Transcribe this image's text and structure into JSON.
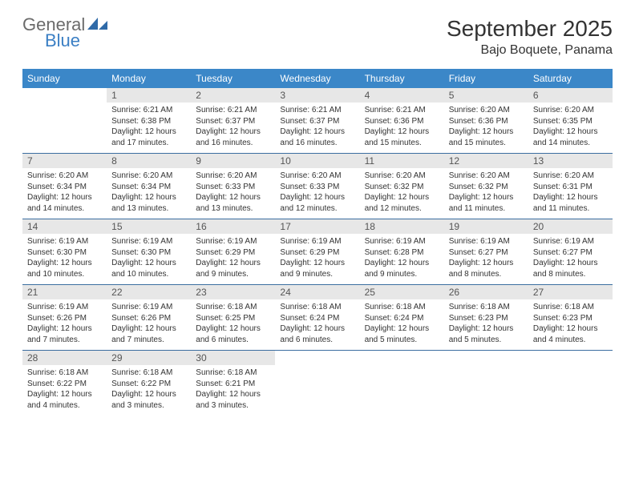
{
  "logo": {
    "word1": "General",
    "word2": "Blue"
  },
  "title": "September 2025",
  "location": "Bajo Boquete, Panama",
  "day_headers": [
    "Sunday",
    "Monday",
    "Tuesday",
    "Wednesday",
    "Thursday",
    "Friday",
    "Saturday"
  ],
  "colors": {
    "header_bg": "#3b87c8",
    "header_text": "#ffffff",
    "daynum_bg": "#e7e7e7",
    "row_border": "#3b6ea0",
    "logo_blue": "#3b7fc4"
  },
  "weeks": [
    [
      {
        "n": "",
        "sunrise": "",
        "sunset": "",
        "daylight1": "",
        "daylight2": ""
      },
      {
        "n": "1",
        "sunrise": "Sunrise: 6:21 AM",
        "sunset": "Sunset: 6:38 PM",
        "daylight1": "Daylight: 12 hours",
        "daylight2": "and 17 minutes."
      },
      {
        "n": "2",
        "sunrise": "Sunrise: 6:21 AM",
        "sunset": "Sunset: 6:37 PM",
        "daylight1": "Daylight: 12 hours",
        "daylight2": "and 16 minutes."
      },
      {
        "n": "3",
        "sunrise": "Sunrise: 6:21 AM",
        "sunset": "Sunset: 6:37 PM",
        "daylight1": "Daylight: 12 hours",
        "daylight2": "and 16 minutes."
      },
      {
        "n": "4",
        "sunrise": "Sunrise: 6:21 AM",
        "sunset": "Sunset: 6:36 PM",
        "daylight1": "Daylight: 12 hours",
        "daylight2": "and 15 minutes."
      },
      {
        "n": "5",
        "sunrise": "Sunrise: 6:20 AM",
        "sunset": "Sunset: 6:36 PM",
        "daylight1": "Daylight: 12 hours",
        "daylight2": "and 15 minutes."
      },
      {
        "n": "6",
        "sunrise": "Sunrise: 6:20 AM",
        "sunset": "Sunset: 6:35 PM",
        "daylight1": "Daylight: 12 hours",
        "daylight2": "and 14 minutes."
      }
    ],
    [
      {
        "n": "7",
        "sunrise": "Sunrise: 6:20 AM",
        "sunset": "Sunset: 6:34 PM",
        "daylight1": "Daylight: 12 hours",
        "daylight2": "and 14 minutes."
      },
      {
        "n": "8",
        "sunrise": "Sunrise: 6:20 AM",
        "sunset": "Sunset: 6:34 PM",
        "daylight1": "Daylight: 12 hours",
        "daylight2": "and 13 minutes."
      },
      {
        "n": "9",
        "sunrise": "Sunrise: 6:20 AM",
        "sunset": "Sunset: 6:33 PM",
        "daylight1": "Daylight: 12 hours",
        "daylight2": "and 13 minutes."
      },
      {
        "n": "10",
        "sunrise": "Sunrise: 6:20 AM",
        "sunset": "Sunset: 6:33 PM",
        "daylight1": "Daylight: 12 hours",
        "daylight2": "and 12 minutes."
      },
      {
        "n": "11",
        "sunrise": "Sunrise: 6:20 AM",
        "sunset": "Sunset: 6:32 PM",
        "daylight1": "Daylight: 12 hours",
        "daylight2": "and 12 minutes."
      },
      {
        "n": "12",
        "sunrise": "Sunrise: 6:20 AM",
        "sunset": "Sunset: 6:32 PM",
        "daylight1": "Daylight: 12 hours",
        "daylight2": "and 11 minutes."
      },
      {
        "n": "13",
        "sunrise": "Sunrise: 6:20 AM",
        "sunset": "Sunset: 6:31 PM",
        "daylight1": "Daylight: 12 hours",
        "daylight2": "and 11 minutes."
      }
    ],
    [
      {
        "n": "14",
        "sunrise": "Sunrise: 6:19 AM",
        "sunset": "Sunset: 6:30 PM",
        "daylight1": "Daylight: 12 hours",
        "daylight2": "and 10 minutes."
      },
      {
        "n": "15",
        "sunrise": "Sunrise: 6:19 AM",
        "sunset": "Sunset: 6:30 PM",
        "daylight1": "Daylight: 12 hours",
        "daylight2": "and 10 minutes."
      },
      {
        "n": "16",
        "sunrise": "Sunrise: 6:19 AM",
        "sunset": "Sunset: 6:29 PM",
        "daylight1": "Daylight: 12 hours",
        "daylight2": "and 9 minutes."
      },
      {
        "n": "17",
        "sunrise": "Sunrise: 6:19 AM",
        "sunset": "Sunset: 6:29 PM",
        "daylight1": "Daylight: 12 hours",
        "daylight2": "and 9 minutes."
      },
      {
        "n": "18",
        "sunrise": "Sunrise: 6:19 AM",
        "sunset": "Sunset: 6:28 PM",
        "daylight1": "Daylight: 12 hours",
        "daylight2": "and 9 minutes."
      },
      {
        "n": "19",
        "sunrise": "Sunrise: 6:19 AM",
        "sunset": "Sunset: 6:27 PM",
        "daylight1": "Daylight: 12 hours",
        "daylight2": "and 8 minutes."
      },
      {
        "n": "20",
        "sunrise": "Sunrise: 6:19 AM",
        "sunset": "Sunset: 6:27 PM",
        "daylight1": "Daylight: 12 hours",
        "daylight2": "and 8 minutes."
      }
    ],
    [
      {
        "n": "21",
        "sunrise": "Sunrise: 6:19 AM",
        "sunset": "Sunset: 6:26 PM",
        "daylight1": "Daylight: 12 hours",
        "daylight2": "and 7 minutes."
      },
      {
        "n": "22",
        "sunrise": "Sunrise: 6:19 AM",
        "sunset": "Sunset: 6:26 PM",
        "daylight1": "Daylight: 12 hours",
        "daylight2": "and 7 minutes."
      },
      {
        "n": "23",
        "sunrise": "Sunrise: 6:18 AM",
        "sunset": "Sunset: 6:25 PM",
        "daylight1": "Daylight: 12 hours",
        "daylight2": "and 6 minutes."
      },
      {
        "n": "24",
        "sunrise": "Sunrise: 6:18 AM",
        "sunset": "Sunset: 6:24 PM",
        "daylight1": "Daylight: 12 hours",
        "daylight2": "and 6 minutes."
      },
      {
        "n": "25",
        "sunrise": "Sunrise: 6:18 AM",
        "sunset": "Sunset: 6:24 PM",
        "daylight1": "Daylight: 12 hours",
        "daylight2": "and 5 minutes."
      },
      {
        "n": "26",
        "sunrise": "Sunrise: 6:18 AM",
        "sunset": "Sunset: 6:23 PM",
        "daylight1": "Daylight: 12 hours",
        "daylight2": "and 5 minutes."
      },
      {
        "n": "27",
        "sunrise": "Sunrise: 6:18 AM",
        "sunset": "Sunset: 6:23 PM",
        "daylight1": "Daylight: 12 hours",
        "daylight2": "and 4 minutes."
      }
    ],
    [
      {
        "n": "28",
        "sunrise": "Sunrise: 6:18 AM",
        "sunset": "Sunset: 6:22 PM",
        "daylight1": "Daylight: 12 hours",
        "daylight2": "and 4 minutes."
      },
      {
        "n": "29",
        "sunrise": "Sunrise: 6:18 AM",
        "sunset": "Sunset: 6:22 PM",
        "daylight1": "Daylight: 12 hours",
        "daylight2": "and 3 minutes."
      },
      {
        "n": "30",
        "sunrise": "Sunrise: 6:18 AM",
        "sunset": "Sunset: 6:21 PM",
        "daylight1": "Daylight: 12 hours",
        "daylight2": "and 3 minutes."
      },
      {
        "n": "",
        "sunrise": "",
        "sunset": "",
        "daylight1": "",
        "daylight2": ""
      },
      {
        "n": "",
        "sunrise": "",
        "sunset": "",
        "daylight1": "",
        "daylight2": ""
      },
      {
        "n": "",
        "sunrise": "",
        "sunset": "",
        "daylight1": "",
        "daylight2": ""
      },
      {
        "n": "",
        "sunrise": "",
        "sunset": "",
        "daylight1": "",
        "daylight2": ""
      }
    ]
  ]
}
